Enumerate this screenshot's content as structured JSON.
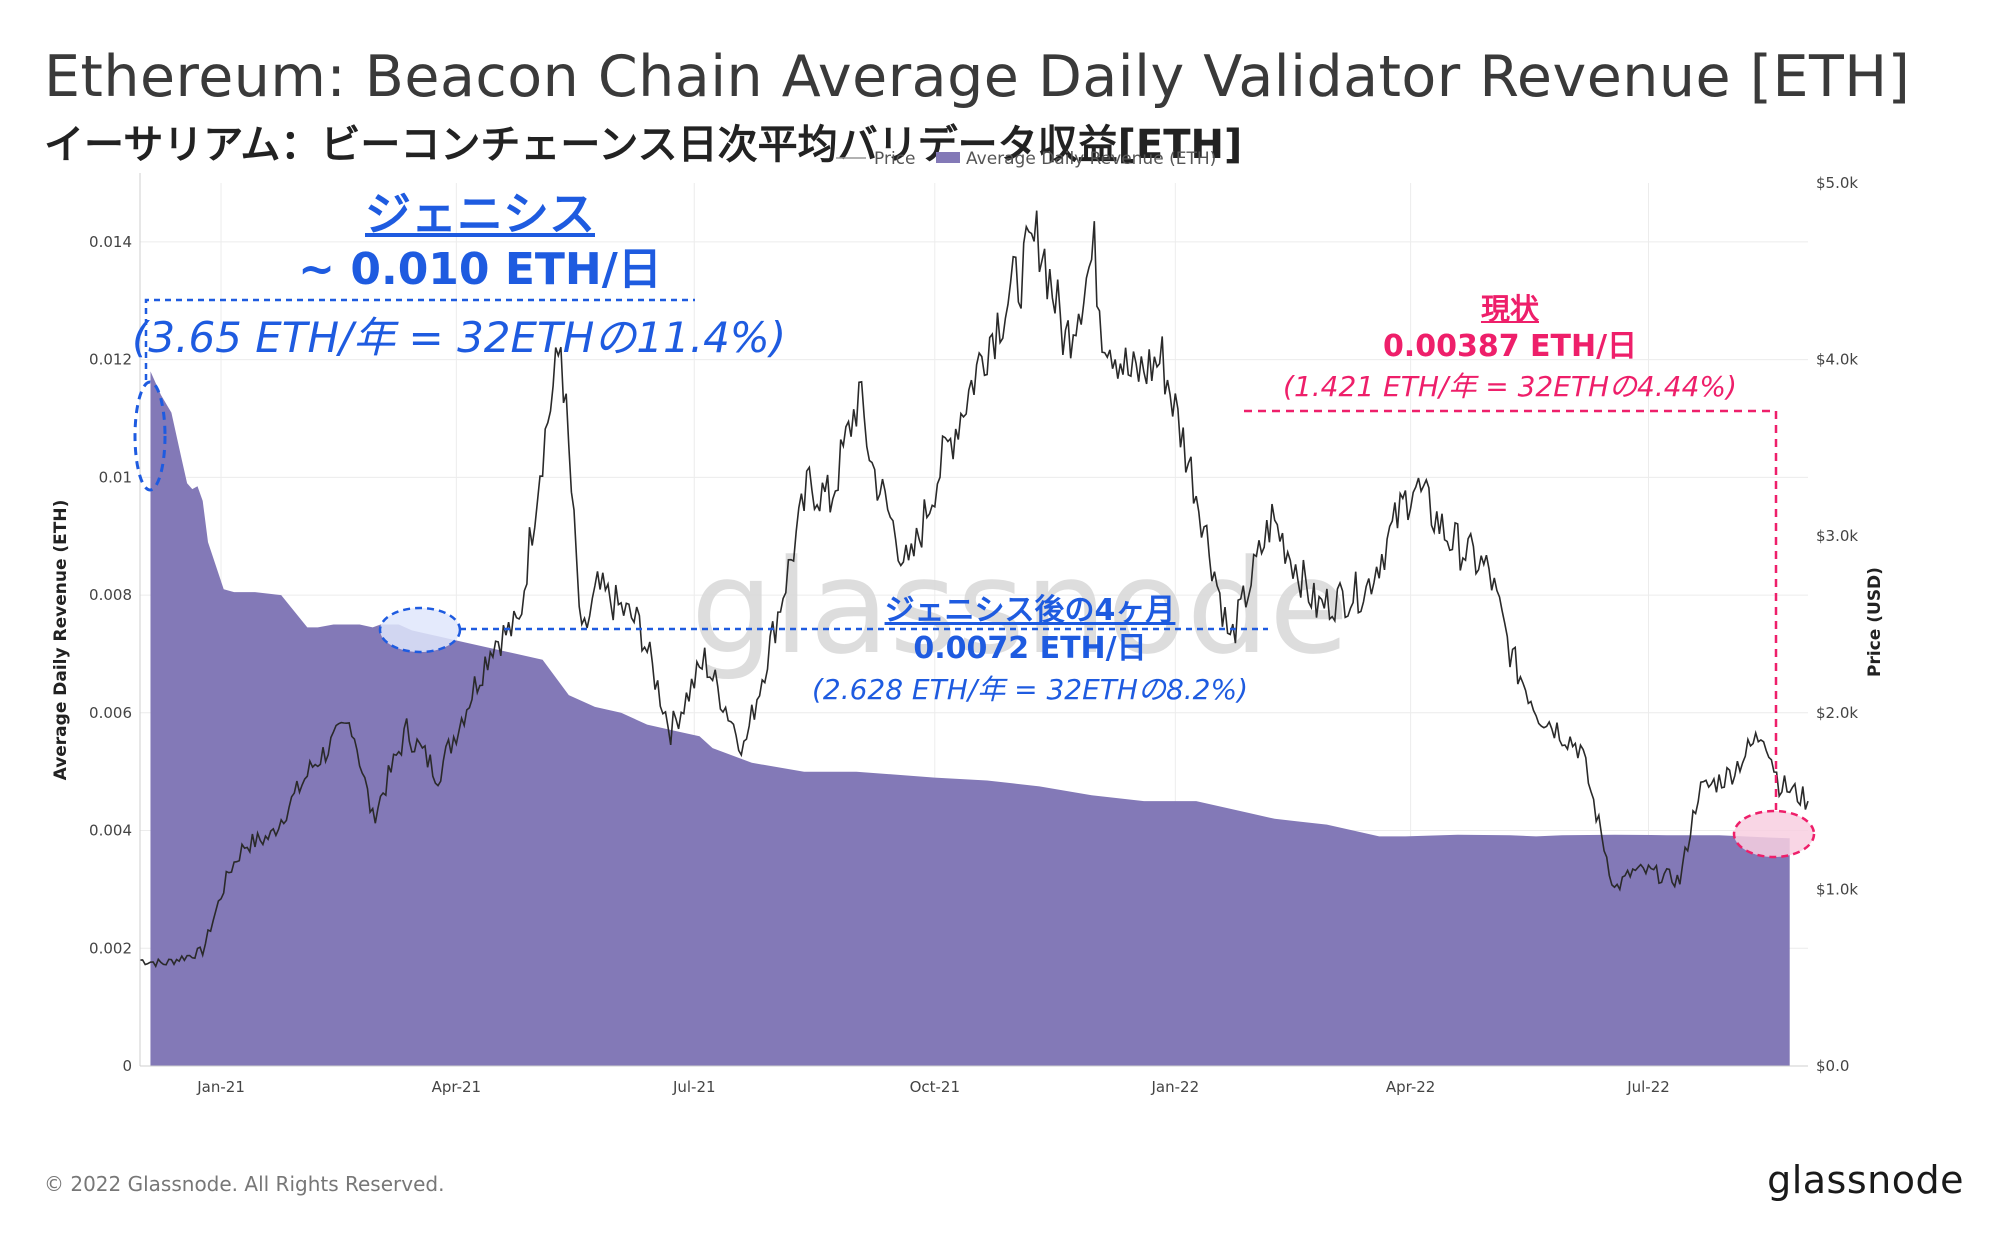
{
  "header": {
    "title": "Ethereum: Beacon Chain Average Daily Validator Revenue [ETH]",
    "subtitle": "イーサリアム：ビーコンチェーンス日次平均バリデータ収益[ETH]"
  },
  "footer": {
    "copyright": "© 2022 Glassnode. All Rights Reserved.",
    "logo": "glassnode"
  },
  "watermark": "glassnode",
  "colors": {
    "revenue_fill": "#8379b7",
    "price_line": "#2a2a2a",
    "blue_annotation": "#1e5be0",
    "pink_annotation": "#ee1f6a"
  },
  "annotations": {
    "genesis": {
      "title": "ジェニシス",
      "value": "~ 0.010 ETH/日",
      "detail": "(3.65 ETH/年 = 32ETHの11.4%)"
    },
    "after_genesis": {
      "title": "ジェニシス後の4ヶ月",
      "value": "0.0072 ETH/日",
      "detail": "(2.628 ETH/年 = 32ETHの8.2%)"
    },
    "current": {
      "title": "現状",
      "value": "0.00387 ETH/日",
      "detail": "(1.421 ETH/年 = 32ETHの4.44%)"
    }
  },
  "chart_data": {
    "type": "area",
    "legend": [
      {
        "name": "Price",
        "icon": "line"
      },
      {
        "name": "Average Daily Revenue (ETH)",
        "icon": "area"
      }
    ],
    "legend_position": "top-center",
    "ylabel": "Average Daily Revenue (ETH)",
    "y2label": "Price (USD)",
    "ylim": [
      0,
      0.015
    ],
    "y2lim": [
      0,
      5000
    ],
    "y_ticks": [
      "0",
      "0.002",
      "0.004",
      "0.006",
      "0.008",
      "0.01",
      "0.012",
      "0.014"
    ],
    "y2_ticks": [
      "$0.0",
      "$1.0k",
      "$2.0k",
      "$3.0k",
      "$4.0k",
      "$5.0k"
    ],
    "x_ticks": [
      "Jan-21",
      "Apr-21",
      "Jul-21",
      "Oct-21",
      "Jan-22",
      "Apr-22",
      "Jul-22"
    ],
    "x_range": [
      "2020-12-01",
      "2022-08-31"
    ],
    "series": [
      {
        "name": "Average Daily Revenue (ETH)",
        "date_index": [
          0,
          4,
          8,
          12,
          14,
          16,
          18,
          20,
          22,
          28,
          32,
          40,
          50,
          60,
          64,
          70,
          80,
          85,
          88,
          95,
          100,
          110,
          120,
          140,
          150,
          160,
          170,
          180,
          190,
          200,
          210,
          215,
          230,
          250,
          270,
          300,
          320,
          330,
          340,
          360,
          380,
          400,
          410,
          420,
          430,
          440,
          450,
          460,
          470,
          480,
          500,
          520,
          530,
          540,
          560,
          580,
          600,
          620,
          627
        ],
        "values": [
          0.0118,
          0.0114,
          0.0111,
          0.0103,
          0.0099,
          0.0098,
          0.00985,
          0.0096,
          0.0089,
          0.0081,
          0.00805,
          0.00805,
          0.008,
          0.00745,
          0.00745,
          0.0075,
          0.0075,
          0.00745,
          0.0075,
          0.0075,
          0.0074,
          0.0073,
          0.0072,
          0.007,
          0.0069,
          0.0063,
          0.0061,
          0.006,
          0.0058,
          0.0057,
          0.0056,
          0.0054,
          0.00515,
          0.005,
          0.005,
          0.0049,
          0.00485,
          0.0048,
          0.00475,
          0.0046,
          0.0045,
          0.0045,
          0.0044,
          0.0043,
          0.0042,
          0.00415,
          0.0041,
          0.004,
          0.0039,
          0.0039,
          0.00393,
          0.00392,
          0.0039,
          0.00392,
          0.00393,
          0.00392,
          0.00392,
          0.00388,
          0.00387
        ]
      },
      {
        "name": "Price",
        "dates": [
          "2020-12-01",
          "2020-12-10",
          "2020-12-25",
          "2021-01-04",
          "2021-01-10",
          "2021-01-20",
          "2021-02-05",
          "2021-02-20",
          "2021-02-28",
          "2021-03-13",
          "2021-03-25",
          "2021-04-15",
          "2021-04-25",
          "2021-05-03",
          "2021-05-11",
          "2021-05-19",
          "2021-05-25",
          "2021-06-10",
          "2021-06-22",
          "2021-07-05",
          "2021-07-20",
          "2021-08-01",
          "2021-08-14",
          "2021-08-22",
          "2021-09-02",
          "2021-09-07",
          "2021-09-21",
          "2021-10-01",
          "2021-10-21",
          "2021-11-10",
          "2021-11-20",
          "2021-12-01",
          "2021-12-04",
          "2021-12-15",
          "2021-12-27",
          "2022-01-10",
          "2022-01-22",
          "2022-02-07",
          "2022-02-24",
          "2022-03-15",
          "2022-04-02",
          "2022-04-15",
          "2022-05-01",
          "2022-05-10",
          "2022-05-20",
          "2022-06-05",
          "2022-06-18",
          "2022-06-25",
          "2022-07-01",
          "2022-07-13",
          "2022-07-20",
          "2022-08-01",
          "2022-08-14",
          "2022-08-20",
          "2022-08-31"
        ],
        "values": [
          600,
          580,
          650,
          1100,
          1250,
          1300,
          1700,
          1950,
          1400,
          1900,
          1650,
          2400,
          2500,
          3400,
          4100,
          2400,
          2700,
          2500,
          1900,
          2300,
          1800,
          2500,
          3300,
          3200,
          3800,
          3400,
          2800,
          3300,
          4100,
          4700,
          4100,
          4600,
          4200,
          3900,
          4000,
          3200,
          2400,
          3100,
          2600,
          2700,
          3300,
          3000,
          2800,
          2300,
          2000,
          1800,
          1000,
          1100,
          1100,
          1050,
          1550,
          1650,
          1900,
          1600,
          1500
        ]
      }
    ]
  }
}
